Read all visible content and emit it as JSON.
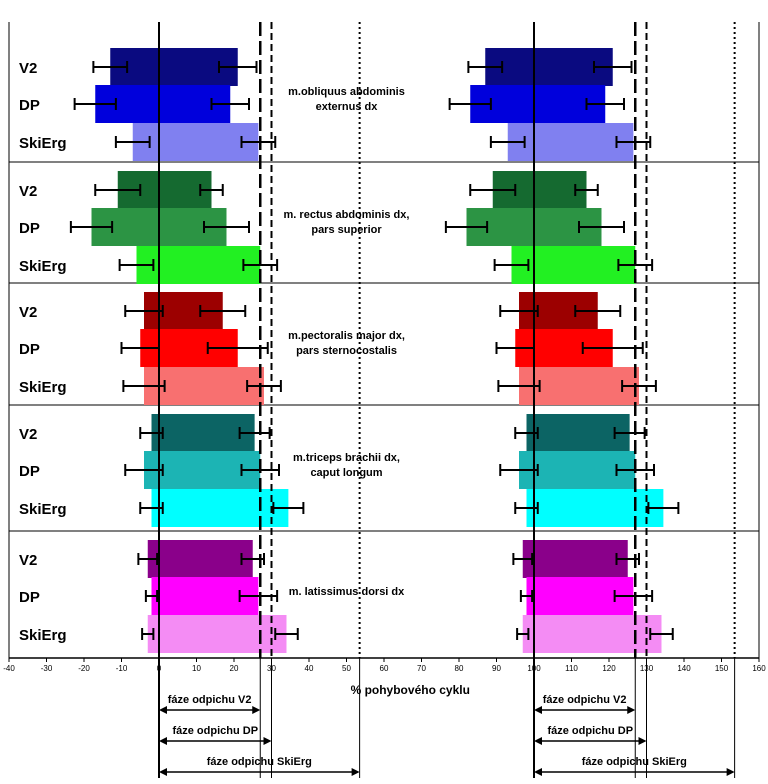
{
  "chart_data": {
    "type": "bar",
    "orientation": "horizontal",
    "title": "",
    "xlabel": "% pohybového cyklu",
    "ylabel": "",
    "xlim": [
      -40,
      160
    ],
    "xticks": [
      -40,
      -30,
      -20,
      -10,
      0,
      10,
      20,
      30,
      40,
      50,
      60,
      70,
      80,
      90,
      100,
      110,
      120,
      130,
      140,
      150,
      160
    ],
    "techniques": [
      "V2",
      "DP",
      "SkiErg"
    ],
    "reference_lines": [
      {
        "label": "fáze odpichu V2",
        "value": 27,
        "style": "dashed-long"
      },
      {
        "label": "fáze odpichu DP",
        "value": 30,
        "style": "dashed"
      },
      {
        "label": "fáze odpichu SkiErg",
        "value": 53.5,
        "style": "dotted"
      }
    ],
    "cycle_offsets": [
      0,
      100
    ],
    "muscles": [
      {
        "label_line1": "m.obliquus abdominis",
        "label_line2": "externus dx",
        "colors": [
          "#0a0a80",
          "#0000dc",
          "#8080f0"
        ],
        "bars": [
          {
            "technique": "V2",
            "start": -13,
            "start_err": 4.5,
            "end": 21,
            "end_err": 5
          },
          {
            "technique": "DP",
            "start": -17,
            "start_err": 5.5,
            "end": 19,
            "end_err": 5
          },
          {
            "technique": "SkiErg",
            "start": -7,
            "start_err": 4.5,
            "end": 26.5,
            "end_err": 4.5
          }
        ]
      },
      {
        "label_line1": "m. rectus abdominis dx,",
        "label_line2": "pars superior",
        "colors": [
          "#156a30",
          "#2c9444",
          "#22f022"
        ],
        "bars": [
          {
            "technique": "V2",
            "start": -11,
            "start_err": 6,
            "end": 14,
            "end_err": 3
          },
          {
            "technique": "DP",
            "start": -18,
            "start_err": 5.5,
            "end": 18,
            "end_err": 6
          },
          {
            "technique": "SkiErg",
            "start": -6,
            "start_err": 4.5,
            "end": 27,
            "end_err": 4.5
          }
        ]
      },
      {
        "label_line1": "m.pectoralis major dx,",
        "label_line2": "pars sternocostalis",
        "colors": [
          "#9c0000",
          "#ff0000",
          "#f87070"
        ],
        "bars": [
          {
            "technique": "V2",
            "start": -4,
            "start_err": 5,
            "end": 17,
            "end_err": 6
          },
          {
            "technique": "DP",
            "start": -5,
            "start_err": 5,
            "end": 21,
            "end_err": 8
          },
          {
            "technique": "SkiErg",
            "start": -4,
            "start_err": 5.5,
            "end": 28,
            "end_err": 4.5
          }
        ]
      },
      {
        "label_line1": "m.triceps brachii dx,",
        "label_line2": "caput longum",
        "colors": [
          "#0c6464",
          "#1cb4b4",
          "#00ffff"
        ],
        "bars": [
          {
            "technique": "V2",
            "start": -2,
            "start_err": 3,
            "end": 25.5,
            "end_err": 4
          },
          {
            "technique": "DP",
            "start": -4,
            "start_err": 5,
            "end": 27,
            "end_err": 5
          },
          {
            "technique": "SkiErg",
            "start": -2,
            "start_err": 3,
            "end": 34.5,
            "end_err": 4
          }
        ]
      },
      {
        "label_line1": "m. latissimus dorsi dx",
        "label_line2": "",
        "colors": [
          "#8a008a",
          "#ff00ff",
          "#f48cf4"
        ],
        "bars": [
          {
            "technique": "V2",
            "start": -3,
            "start_err": 2.5,
            "end": 25,
            "end_err": 3
          },
          {
            "technique": "DP",
            "start": -2,
            "start_err": 1.5,
            "end": 26.5,
            "end_err": 5
          },
          {
            "technique": "SkiErg",
            "start": -3,
            "start_err": 1.5,
            "end": 34,
            "end_err": 3
          }
        ]
      }
    ]
  }
}
